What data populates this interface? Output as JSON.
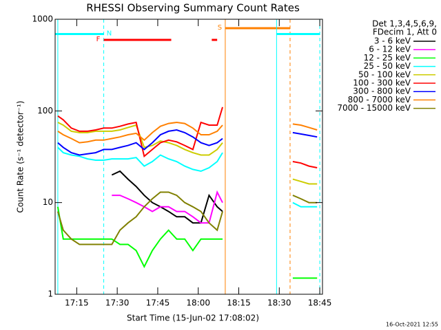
{
  "chart_data": {
    "type": "line",
    "title": "RHESSI Observing Summary Count Rates",
    "xlabel": "Start Time (15-Jun-02 17:08:02)",
    "ylabel": "Count Rate (s⁻¹ detector⁻¹)",
    "legend_header": [
      "Det 1,3,4,5,6,9,",
      "FDecim 1, Att 0"
    ],
    "footer": "16-Oct-2021 12:55",
    "log_y": true,
    "xlim": [
      "17:07",
      "18:46"
    ],
    "xticks": [
      "17:15",
      "17:30",
      "17:45",
      "18:00",
      "18:15",
      "18:30",
      "18:45"
    ],
    "ylim": [
      1,
      1000
    ],
    "yticks": [
      1,
      10,
      100,
      1000
    ],
    "x": [
      "17:08",
      "17:10",
      "17:13",
      "17:16",
      "17:19",
      "17:22",
      "17:25",
      "17:28",
      "17:31",
      "17:34",
      "17:37",
      "17:40",
      "17:43",
      "17:46",
      "17:49",
      "17:52",
      "17:55",
      "17:58",
      "18:01",
      "18:04",
      "18:07",
      "18:09",
      "18:12",
      "18:35",
      "18:38",
      "18:41",
      "18:44"
    ],
    "series": [
      {
        "name": "3 - 6 keV",
        "color": "#000000",
        "values": [
          null,
          null,
          null,
          null,
          null,
          null,
          null,
          20,
          22,
          18,
          15,
          12,
          10,
          9,
          8,
          7,
          7,
          6,
          6,
          12,
          9,
          8,
          null,
          null,
          null,
          null,
          null
        ]
      },
      {
        "name": "6 - 12 keV",
        "color": "#ff00ff",
        "values": [
          null,
          null,
          null,
          null,
          null,
          null,
          null,
          12,
          12,
          11,
          10,
          9,
          8,
          9,
          9,
          8,
          8,
          7,
          6,
          6,
          13,
          10,
          null,
          null,
          null,
          null,
          null
        ]
      },
      {
        "name": "12 - 25 keV",
        "color": "#00ff00",
        "values": [
          9,
          4,
          4,
          4,
          4,
          4,
          4,
          4,
          3.5,
          3.5,
          3,
          2,
          3,
          4,
          5,
          4,
          4,
          3,
          4,
          4,
          4,
          4,
          null,
          1.5,
          1.5,
          1.5,
          1.5
        ]
      },
      {
        "name": "25 - 50 keV",
        "color": "#00ffff",
        "values": [
          40,
          35,
          33,
          32,
          30,
          29,
          29,
          30,
          30,
          30,
          31,
          25,
          28,
          33,
          30,
          28,
          25,
          23,
          22,
          24,
          28,
          35,
          null,
          10,
          9,
          9,
          9
        ]
      },
      {
        "name": "50 - 100 keV",
        "color": "#cccc00",
        "values": [
          75,
          70,
          60,
          58,
          58,
          60,
          60,
          60,
          62,
          66,
          70,
          40,
          42,
          47,
          45,
          42,
          38,
          35,
          33,
          33,
          38,
          45,
          null,
          18,
          17,
          16,
          16
        ]
      },
      {
        "name": "100 - 300 keV",
        "color": "#ff0000",
        "values": [
          88,
          80,
          65,
          60,
          60,
          62,
          65,
          65,
          68,
          72,
          75,
          32,
          38,
          45,
          48,
          46,
          42,
          38,
          75,
          70,
          70,
          110,
          null,
          28,
          27,
          25,
          24
        ]
      },
      {
        "name": "300 - 800 keV",
        "color": "#0000ff",
        "values": [
          45,
          40,
          35,
          33,
          34,
          35,
          38,
          38,
          40,
          42,
          45,
          38,
          45,
          55,
          60,
          62,
          58,
          52,
          45,
          42,
          45,
          50,
          null,
          58,
          56,
          54,
          52
        ]
      },
      {
        "name": "800 - 7000 keV",
        "color": "#ff8000",
        "values": [
          60,
          55,
          50,
          45,
          46,
          48,
          48,
          50,
          52,
          55,
          57,
          48,
          58,
          68,
          73,
          75,
          73,
          65,
          55,
          55,
          60,
          70,
          null,
          72,
          70,
          66,
          62
        ]
      },
      {
        "name": "7000 - 15000 keV",
        "color": "#808000",
        "values": [
          8,
          5,
          4,
          3.5,
          3.5,
          3.5,
          3.5,
          3.5,
          5,
          6,
          7,
          9,
          11,
          13,
          13,
          12,
          10,
          9,
          8,
          6,
          5,
          8,
          null,
          12,
          11,
          10,
          10
        ]
      }
    ],
    "flags": [
      {
        "label": "S",
        "color": "#ff8000",
        "bars": [
          [
            "18:10",
            "18:34"
          ]
        ],
        "solid": [
          "18:10"
        ],
        "dashed": [
          "18:34"
        ]
      },
      {
        "label": "N",
        "color": "#00ffff",
        "bars": [
          [
            "17:07",
            "17:25"
          ],
          [
            "18:29",
            "18:45"
          ]
        ],
        "solid": [
          "17:08",
          "18:29"
        ],
        "dashed": [
          "17:25",
          "18:45"
        ]
      },
      {
        "label": "F",
        "color": "#ff0000",
        "bars": [
          [
            "17:25",
            "17:50"
          ],
          [
            "18:05",
            "18:07"
          ]
        ],
        "solid": [],
        "dashed": []
      }
    ]
  }
}
